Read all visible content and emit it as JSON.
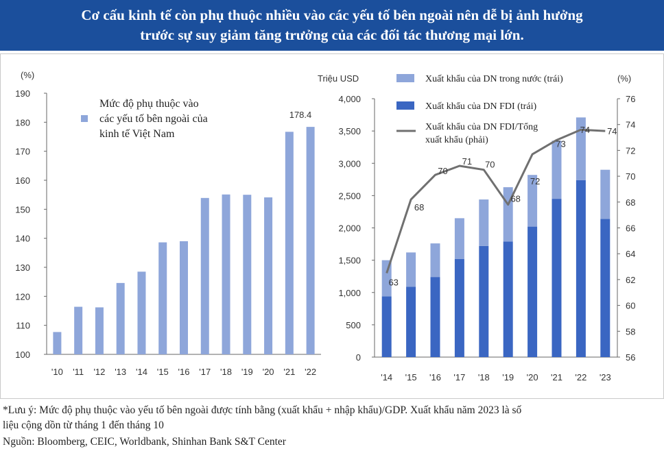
{
  "header": {
    "line1": "Cơ cấu kinh tế còn phụ thuộc nhiều vào các yếu tố bên ngoài nên dễ bị ảnh hưởng",
    "line2": "trước sự suy giảm tăng trưởng của các đối tác thương mại lớn."
  },
  "colors": {
    "header_bg": "#1b4f9c",
    "light_bar": "#8ea6da",
    "dark_bar": "#3a66c2",
    "line": "#707070"
  },
  "chart_data": [
    {
      "type": "bar",
      "yunit": "(%)",
      "ylim": [
        100,
        190
      ],
      "yticks": [
        "190",
        "180",
        "170",
        "160",
        "150",
        "140",
        "130",
        "120",
        "110",
        "100"
      ],
      "categories": [
        "'10",
        "'11",
        "'12",
        "'13",
        "'14",
        "'15",
        "'16",
        "'17",
        "'18",
        "'19",
        "'20",
        "'21",
        "'22"
      ],
      "series": [
        {
          "name": "Mức độ phụ thuộc vào các yếu tố bên ngoài của kinh tế Việt Nam",
          "values": [
            107.7,
            116.4,
            116.2,
            124.6,
            128.5,
            138.6,
            139.0,
            153.9,
            155.1,
            155.0,
            154.1,
            176.7,
            178.4
          ]
        }
      ],
      "legend_lines": [
        "Mức độ phụ thuộc vào",
        "các yếu tố bên ngoài của",
        "kinh tế Việt Nam"
      ],
      "annotation": "178.4",
      "grid": false
    },
    {
      "type": "bar+line",
      "left_unit": "Triệu USD",
      "right_unit": "(%)",
      "ylim_left": [
        0,
        4000
      ],
      "ylim_right": [
        56,
        76
      ],
      "left_ticks": [
        "4,000",
        "3,500",
        "3,000",
        "2,500",
        "2,000",
        "1,500",
        "1,000",
        "500",
        "0"
      ],
      "right_ticks": [
        "76",
        "74",
        "72",
        "70",
        "68",
        "66",
        "64",
        "62",
        "60",
        "58",
        "56"
      ],
      "categories": [
        "'14",
        "'15",
        "'16",
        "'17",
        "'18",
        "'19",
        "'20",
        "'21",
        "'22",
        "'23"
      ],
      "series": [
        {
          "name": "Xuất khẩu của DN FDI (trái)",
          "values": [
            940,
            1090,
            1240,
            1520,
            1720,
            1790,
            2020,
            2450,
            2740,
            2140
          ]
        },
        {
          "name": "Xuất khẩu của DN trong nước (trái)",
          "values": [
            560,
            530,
            520,
            630,
            720,
            840,
            800,
            900,
            970,
            760
          ]
        },
        {
          "name": "Xuất khẩu của DN FDI/Tổng xuất khẩu (phải)",
          "values": [
            62.5,
            68.2,
            70.1,
            70.8,
            70.5,
            67.8,
            71.7,
            72.8,
            73.6,
            73.5
          ]
        }
      ],
      "line_labels": [
        "63",
        "68",
        "70",
        "71",
        "70",
        "68",
        "72",
        "73",
        "74",
        "74"
      ],
      "legend": {
        "domestic": "Xuất khẩu của DN trong nước (trái)",
        "fdi": "Xuất khẩu của DN FDI (trái)",
        "ratio_line1": "Xuất khẩu của DN FDI/Tổng",
        "ratio_line2": "xuất khẩu (phải)"
      },
      "grid": false
    }
  ],
  "notes": {
    "line1": "*Lưu ý: Mức độ phụ thuộc vào yếu tố bên ngoài được tính bằng (xuất khẩu + nhập khẩu)/GDP. Xuất khẩu năm 2023 là số",
    "line2": "liệu cộng dồn từ tháng 1 đến tháng 10",
    "line3": "Nguồn: Bloomberg, CEIC, Worldbank, Shinhan Bank S&T Center"
  }
}
